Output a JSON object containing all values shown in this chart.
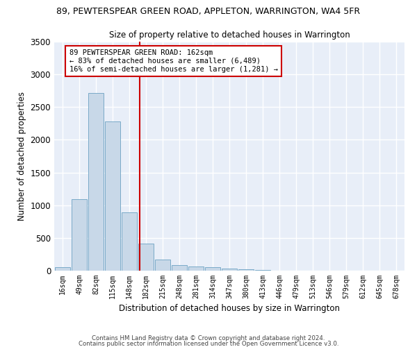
{
  "title1": "89, PEWTERSPEAR GREEN ROAD, APPLETON, WARRINGTON, WA4 5FR",
  "title2": "Size of property relative to detached houses in Warrington",
  "xlabel": "Distribution of detached houses by size in Warrington",
  "ylabel": "Number of detached properties",
  "bar_color": "#c8d8e8",
  "bar_edge_color": "#7aaac8",
  "background_color": "#e8eef8",
  "grid_color": "#ffffff",
  "categories": [
    "16sqm",
    "49sqm",
    "82sqm",
    "115sqm",
    "148sqm",
    "182sqm",
    "215sqm",
    "248sqm",
    "281sqm",
    "314sqm",
    "347sqm",
    "380sqm",
    "413sqm",
    "446sqm",
    "479sqm",
    "513sqm",
    "546sqm",
    "579sqm",
    "612sqm",
    "645sqm",
    "678sqm"
  ],
  "values": [
    50,
    1090,
    2720,
    2280,
    890,
    415,
    170,
    90,
    60,
    50,
    30,
    20,
    10,
    5,
    3,
    2,
    1,
    0,
    0,
    0,
    0
  ],
  "ylim": [
    0,
    3500
  ],
  "yticks": [
    0,
    500,
    1000,
    1500,
    2000,
    2500,
    3000,
    3500
  ],
  "vline_x": 4.62,
  "vline_color": "#cc0000",
  "annotation_line1": "89 PEWTERSPEAR GREEN ROAD: 162sqm",
  "annotation_line2": "← 83% of detached houses are smaller (6,489)",
  "annotation_line3": "16% of semi-detached houses are larger (1,281) →",
  "footer1": "Contains HM Land Registry data © Crown copyright and database right 2024.",
  "footer2": "Contains public sector information licensed under the Open Government Licence v3.0."
}
